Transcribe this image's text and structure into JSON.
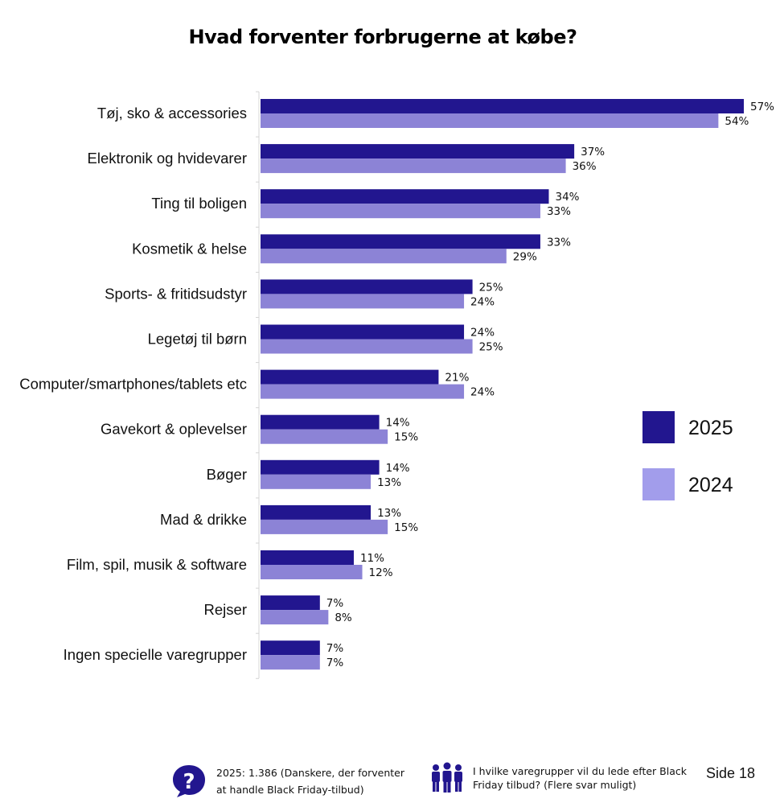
{
  "chart_data": {
    "type": "bar",
    "orientation": "horizontal",
    "title": "Hvad forventer forbrugerne at købe?",
    "categories": [
      "Tøj, sko & accessories",
      "Elektronik og hvidevarer",
      "Ting til boligen",
      "Kosmetik & helse",
      "Sports- & fritidsudstyr",
      "Legetøj til børn",
      "Computer/smartphones/tablets etc",
      "Gavekort & oplevelser",
      "Bøger",
      "Mad & drikke",
      "Film, spil, musik & software",
      "Rejser",
      "Ingen specielle varegrupper"
    ],
    "series": [
      {
        "name": "2025",
        "values": [
          57,
          37,
          34,
          33,
          25,
          24,
          21,
          14,
          14,
          13,
          11,
          7,
          7
        ],
        "color": "#22168f"
      },
      {
        "name": "2024",
        "values": [
          54,
          36,
          33,
          29,
          24,
          25,
          24,
          15,
          13,
          15,
          12,
          8,
          7
        ],
        "color": "#8c83d6"
      }
    ],
    "value_suffix": "%",
    "xlim": [
      0,
      57
    ],
    "legend_position": "right",
    "legend_colors": {
      "2025": "#22168f",
      "2024": "#a29deb"
    },
    "grid": false
  },
  "footer": {
    "source_text": "2025: 1.386 (Danskere, der forventer at handle Black Friday-tilbud)",
    "question_text": "I hvilke varegrupper vil du lede efter Black Friday tilbud? (Flere svar muligt)",
    "page": "Side 18"
  },
  "icons": {
    "source": "question-bubble-icon",
    "question": "people-group-icon",
    "accent": "#22168f"
  }
}
